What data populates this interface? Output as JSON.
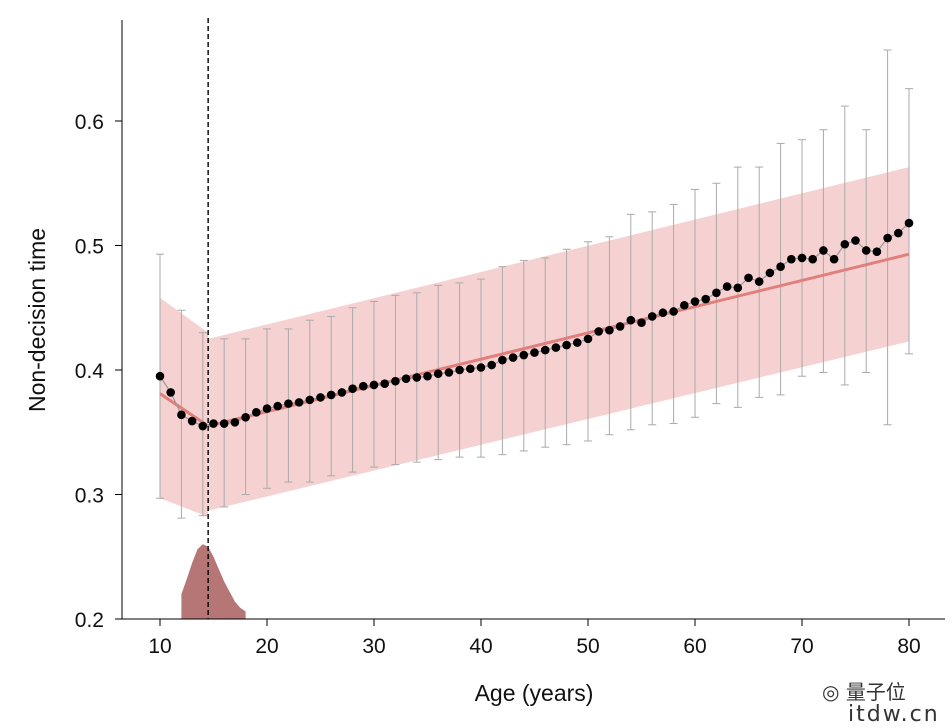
{
  "chart_data": {
    "type": "scatter",
    "xlabel": "Age (years)",
    "ylabel": "Non-decision time",
    "xlim": [
      10,
      80
    ],
    "ylim": [
      0.2,
      0.67
    ],
    "xticks": [
      10,
      20,
      30,
      40,
      50,
      60,
      70,
      80
    ],
    "yticks": [
      0.2,
      0.3,
      0.4,
      0.5,
      0.6
    ],
    "grid": false,
    "breakpoint_age": 14.5,
    "colors": {
      "points": "#000000",
      "fit": "#e07f7c",
      "band": "#f5c9c9",
      "errorbars": "#aaaaaa",
      "density": "#a95e5e"
    },
    "points": {
      "x": [
        10,
        11,
        12,
        13,
        14,
        15,
        16,
        17,
        18,
        19,
        20,
        21,
        22,
        23,
        24,
        25,
        26,
        27,
        28,
        29,
        30,
        31,
        32,
        33,
        34,
        35,
        36,
        37,
        38,
        39,
        40,
        41,
        42,
        43,
        44,
        45,
        46,
        47,
        48,
        49,
        50,
        51,
        52,
        53,
        54,
        55,
        56,
        57,
        58,
        59,
        60,
        61,
        62,
        63,
        64,
        65,
        66,
        67,
        68,
        69,
        70,
        71,
        72,
        73,
        74,
        75,
        76,
        77,
        78,
        79,
        80
      ],
      "y": [
        0.395,
        0.382,
        0.364,
        0.359,
        0.355,
        0.357,
        0.357,
        0.358,
        0.362,
        0.366,
        0.369,
        0.371,
        0.373,
        0.374,
        0.376,
        0.378,
        0.38,
        0.382,
        0.385,
        0.387,
        0.388,
        0.389,
        0.391,
        0.393,
        0.394,
        0.395,
        0.397,
        0.398,
        0.4,
        0.401,
        0.402,
        0.404,
        0.408,
        0.41,
        0.412,
        0.414,
        0.416,
        0.418,
        0.42,
        0.422,
        0.425,
        0.431,
        0.432,
        0.435,
        0.44,
        0.438,
        0.443,
        0.446,
        0.447,
        0.452,
        0.455,
        0.457,
        0.462,
        0.467,
        0.466,
        0.474,
        0.471,
        0.478,
        0.483,
        0.489,
        0.49,
        0.489,
        0.496,
        0.489,
        0.501,
        0.504,
        0.496,
        0.495,
        0.506,
        0.51,
        0.518
      ]
    },
    "error_bars": {
      "x": [
        10,
        12,
        14,
        16,
        18,
        20,
        22,
        24,
        26,
        28,
        30,
        32,
        34,
        36,
        38,
        40,
        42,
        44,
        46,
        48,
        50,
        52,
        54,
        56,
        58,
        60,
        62,
        64,
        66,
        68,
        70,
        72,
        74,
        76,
        78,
        80
      ],
      "upper": [
        0.493,
        0.448,
        0.43,
        0.425,
        0.425,
        0.433,
        0.433,
        0.44,
        0.443,
        0.45,
        0.455,
        0.46,
        0.462,
        0.468,
        0.47,
        0.473,
        0.483,
        0.488,
        0.49,
        0.497,
        0.503,
        0.507,
        0.525,
        0.527,
        0.533,
        0.545,
        0.55,
        0.563,
        0.563,
        0.582,
        0.585,
        0.593,
        0.612,
        0.593,
        0.657,
        0.626
      ],
      "lower": [
        0.297,
        0.281,
        0.283,
        0.29,
        0.3,
        0.305,
        0.31,
        0.31,
        0.315,
        0.318,
        0.322,
        0.324,
        0.326,
        0.328,
        0.33,
        0.33,
        0.332,
        0.335,
        0.338,
        0.34,
        0.343,
        0.348,
        0.352,
        0.356,
        0.357,
        0.362,
        0.373,
        0.37,
        0.378,
        0.38,
        0.395,
        0.398,
        0.388,
        0.398,
        0.356,
        0.413
      ]
    },
    "fit": {
      "segments": [
        {
          "x": [
            10,
            14.5
          ],
          "y": [
            0.381,
            0.355
          ],
          "band_upper": [
            0.458,
            0.43
          ],
          "band_lower": [
            0.297,
            0.282
          ]
        },
        {
          "x": [
            14.5,
            80
          ],
          "y": [
            0.355,
            0.493
          ],
          "band_upper": [
            0.425,
            0.563
          ],
          "band_lower": [
            0.287,
            0.423
          ]
        }
      ]
    },
    "breakpoint_density": {
      "x": [
        12,
        12.5,
        13,
        13.5,
        14,
        14.5,
        15,
        15.5,
        16,
        16.5,
        17,
        17.5,
        18
      ],
      "height": [
        0.22,
        0.232,
        0.245,
        0.256,
        0.26,
        0.258,
        0.25,
        0.24,
        0.23,
        0.222,
        0.214,
        0.209,
        0.206
      ]
    }
  },
  "watermark": {
    "name": "量子位",
    "site": "itdw.cn"
  }
}
